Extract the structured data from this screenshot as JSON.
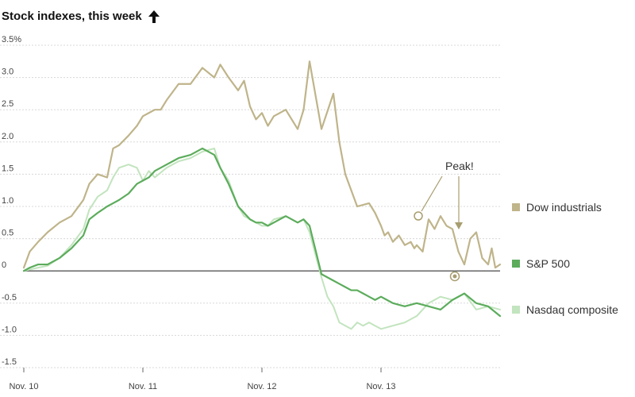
{
  "chart_data": {
    "type": "line",
    "title": "Stock indexes, this week",
    "xlabel": "",
    "ylabel": "",
    "ylim": [
      -1.5,
      3.5
    ],
    "y_ticks": [
      {
        "value": 3.5,
        "label": "3.5%"
      },
      {
        "value": 3.0,
        "label": "3.0"
      },
      {
        "value": 2.5,
        "label": "2.5"
      },
      {
        "value": 2.0,
        "label": "2.0"
      },
      {
        "value": 1.5,
        "label": "1.5"
      },
      {
        "value": 1.0,
        "label": "1.0"
      },
      {
        "value": 0.5,
        "label": "0.5"
      },
      {
        "value": 0,
        "label": "0"
      },
      {
        "value": -0.5,
        "label": "-0.5"
      },
      {
        "value": -1.0,
        "label": "-1.0"
      },
      {
        "value": -1.5,
        "label": "-1.5"
      }
    ],
    "x_ticks": [
      {
        "value": 0,
        "label": "Nov. 10"
      },
      {
        "value": 1,
        "label": "Nov. 11"
      },
      {
        "value": 2,
        "label": "Nov. 12"
      },
      {
        "value": 3,
        "label": "Nov. 13"
      }
    ],
    "xlim": [
      0,
      4
    ],
    "grid": true,
    "legend_position": "right",
    "series": [
      {
        "name": "Dow industrials",
        "color": "#bfb48a",
        "width": 2.2,
        "dashed": false,
        "x": [
          0,
          0.05,
          0.12,
          0.2,
          0.3,
          0.4,
          0.5,
          0.55,
          0.62,
          0.7,
          0.75,
          0.8,
          0.88,
          0.95,
          1.0,
          1.05,
          1.1,
          1.15,
          1.2,
          1.3,
          1.4,
          1.5,
          1.6,
          1.65,
          1.72,
          1.8,
          1.85,
          1.9,
          1.95,
          2.0,
          2.05,
          2.1,
          2.2,
          2.3,
          2.35,
          2.4,
          2.5,
          2.6,
          2.65,
          2.7,
          2.8,
          2.9,
          2.95,
          3.0,
          3.03,
          3.06,
          3.1,
          3.15,
          3.2,
          3.25,
          3.28,
          3.3,
          3.35,
          3.4,
          3.45,
          3.5,
          3.55,
          3.6,
          3.65,
          3.7,
          3.75,
          3.8,
          3.85,
          3.9,
          3.93,
          3.96,
          4.0
        ],
        "values": [
          0.05,
          0.3,
          0.45,
          0.6,
          0.75,
          0.85,
          1.1,
          1.35,
          1.5,
          1.45,
          1.9,
          1.95,
          2.1,
          2.25,
          2.4,
          2.45,
          2.5,
          2.5,
          2.65,
          2.9,
          2.9,
          3.15,
          3.0,
          3.2,
          3.0,
          2.8,
          2.95,
          2.55,
          2.35,
          2.45,
          2.25,
          2.4,
          2.5,
          2.2,
          2.5,
          3.25,
          2.2,
          2.75,
          2.0,
          1.5,
          1.0,
          1.05,
          0.9,
          0.7,
          0.55,
          0.6,
          0.45,
          0.55,
          0.4,
          0.45,
          0.35,
          0.4,
          0.3,
          0.8,
          0.65,
          0.85,
          0.7,
          0.65,
          0.3,
          0.1,
          0.5,
          0.6,
          0.2,
          0.1,
          0.35,
          0.05,
          0.1
        ]
      },
      {
        "name": "S&P 500",
        "color": "#5cac5c",
        "width": 2.2,
        "dashed": false,
        "x": [
          0,
          0.05,
          0.12,
          0.2,
          0.3,
          0.4,
          0.5,
          0.55,
          0.62,
          0.7,
          0.75,
          0.8,
          0.88,
          0.95,
          1.0,
          1.05,
          1.1,
          1.2,
          1.3,
          1.4,
          1.5,
          1.6,
          1.65,
          1.72,
          1.8,
          1.85,
          1.9,
          1.95,
          2.0,
          2.05,
          2.1,
          2.2,
          2.3,
          2.35,
          2.4,
          2.5,
          2.6,
          2.65,
          2.7,
          2.75,
          2.8,
          2.85,
          2.9,
          2.95,
          3.0,
          3.05,
          3.1,
          3.2,
          3.3,
          3.4,
          3.5,
          3.6,
          3.7,
          3.8,
          3.9,
          4.0
        ],
        "values": [
          0.0,
          0.05,
          0.1,
          0.1,
          0.2,
          0.35,
          0.55,
          0.8,
          0.9,
          1.0,
          1.05,
          1.1,
          1.2,
          1.35,
          1.4,
          1.45,
          1.55,
          1.65,
          1.75,
          1.8,
          1.9,
          1.8,
          1.6,
          1.35,
          1.0,
          0.9,
          0.8,
          0.75,
          0.75,
          0.7,
          0.75,
          0.85,
          0.75,
          0.8,
          0.7,
          -0.05,
          -0.15,
          -0.2,
          -0.25,
          -0.3,
          -0.3,
          -0.35,
          -0.4,
          -0.45,
          -0.4,
          -0.45,
          -0.5,
          -0.55,
          -0.5,
          -0.55,
          -0.6,
          -0.45,
          -0.35,
          -0.5,
          -0.55,
          -0.7
        ]
      },
      {
        "name": "Nasdaq composite",
        "color": "#c2e4be",
        "width": 2.0,
        "dashed": false,
        "x": [
          0,
          0.05,
          0.12,
          0.2,
          0.3,
          0.4,
          0.5,
          0.55,
          0.62,
          0.7,
          0.75,
          0.8,
          0.88,
          0.95,
          1.0,
          1.05,
          1.1,
          1.2,
          1.3,
          1.4,
          1.5,
          1.6,
          1.65,
          1.72,
          1.8,
          1.85,
          1.9,
          1.95,
          2.0,
          2.05,
          2.1,
          2.2,
          2.3,
          2.35,
          2.4,
          2.5,
          2.55,
          2.6,
          2.65,
          2.7,
          2.75,
          2.8,
          2.85,
          2.9,
          2.95,
          3.0,
          3.1,
          3.2,
          3.3,
          3.4,
          3.5,
          3.6,
          3.7,
          3.8,
          3.9,
          4.0
        ],
        "values": [
          0.0,
          0.02,
          0.05,
          0.08,
          0.2,
          0.4,
          0.65,
          0.95,
          1.15,
          1.25,
          1.45,
          1.6,
          1.65,
          1.6,
          1.4,
          1.55,
          1.45,
          1.6,
          1.7,
          1.75,
          1.85,
          1.9,
          1.6,
          1.4,
          1.0,
          0.85,
          0.8,
          0.75,
          0.7,
          0.7,
          0.8,
          0.85,
          0.75,
          0.8,
          0.6,
          -0.1,
          -0.4,
          -0.55,
          -0.8,
          -0.85,
          -0.9,
          -0.8,
          -0.85,
          -0.8,
          -0.85,
          -0.9,
          -0.85,
          -0.8,
          -0.7,
          -0.5,
          -0.4,
          -0.45,
          -0.35,
          -0.6,
          -0.55,
          -0.6
        ]
      }
    ],
    "annotations": [
      {
        "text": "Peak!"
      }
    ]
  },
  "colors": {
    "dow": "#bfb48a",
    "sp500": "#5cac5c",
    "nasdaq": "#c2e4be",
    "grid": "#d8d8d8",
    "zero_line": "#666666"
  },
  "icons": {
    "title_arrow": "up-arrow-icon"
  }
}
